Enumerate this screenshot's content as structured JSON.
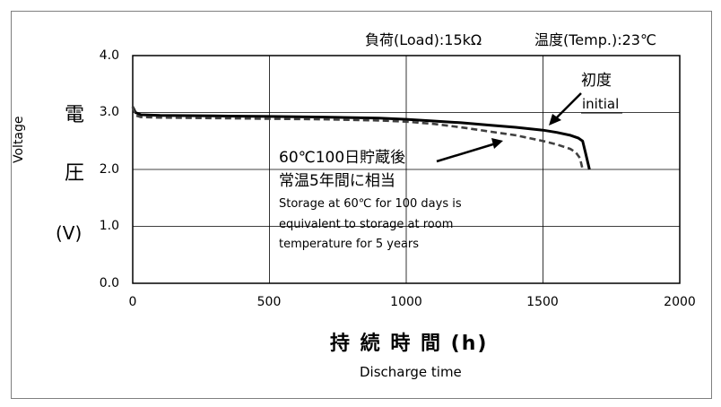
{
  "chart_data": {
    "type": "line",
    "header_load": "負荷(Load):15kΩ",
    "header_temp": "温度(Temp.):23℃",
    "ylabel_jp_1": "電",
    "ylabel_jp_2": "圧",
    "ylabel_unit": "(V)",
    "ylabel_en": "Voltage",
    "xlabel_jp": "持 続 時 間 (h)",
    "xlabel_en": "Discharge time",
    "xlim": [
      0,
      2000
    ],
    "ylim": [
      0,
      4.0
    ],
    "x_ticks": [
      "0",
      "500",
      "1000",
      "1500",
      "2000"
    ],
    "y_ticks": [
      "0.0",
      "1.0",
      "2.0",
      "3.0",
      "4.0"
    ],
    "grid": true,
    "series": [
      {
        "name": "初度",
        "name_en": "initial",
        "style": "solid",
        "x": [
          0,
          10,
          30,
          100,
          300,
          500,
          700,
          900,
          1000,
          1100,
          1200,
          1300,
          1400,
          1500,
          1550,
          1600,
          1630,
          1645,
          1655,
          1670
        ],
        "y": [
          3.1,
          3.0,
          2.96,
          2.95,
          2.94,
          2.93,
          2.92,
          2.9,
          2.88,
          2.85,
          2.82,
          2.78,
          2.74,
          2.69,
          2.65,
          2.6,
          2.55,
          2.5,
          2.3,
          2.0
        ]
      },
      {
        "name": "60℃100日貯蔵後 常温5年間に相当",
        "style": "dashed",
        "x": [
          0,
          10,
          30,
          100,
          300,
          500,
          700,
          900,
          1000,
          1100,
          1200,
          1300,
          1400,
          1500,
          1550,
          1600,
          1620,
          1635,
          1645
        ],
        "y": [
          3.1,
          2.95,
          2.92,
          2.91,
          2.9,
          2.89,
          2.88,
          2.86,
          2.84,
          2.8,
          2.74,
          2.67,
          2.6,
          2.5,
          2.44,
          2.36,
          2.3,
          2.2,
          2.0
        ]
      }
    ],
    "annotations": {
      "initial_jp": "初度",
      "initial_en": "initial",
      "storage_jp_1": "60℃100日貯蔵後",
      "storage_jp_2": "常温5年間に相当",
      "storage_en_1": "Storage at 60℃ for 100 days is",
      "storage_en_2": "equivalent to storage at room",
      "storage_en_3": "temperature for 5 years"
    }
  }
}
